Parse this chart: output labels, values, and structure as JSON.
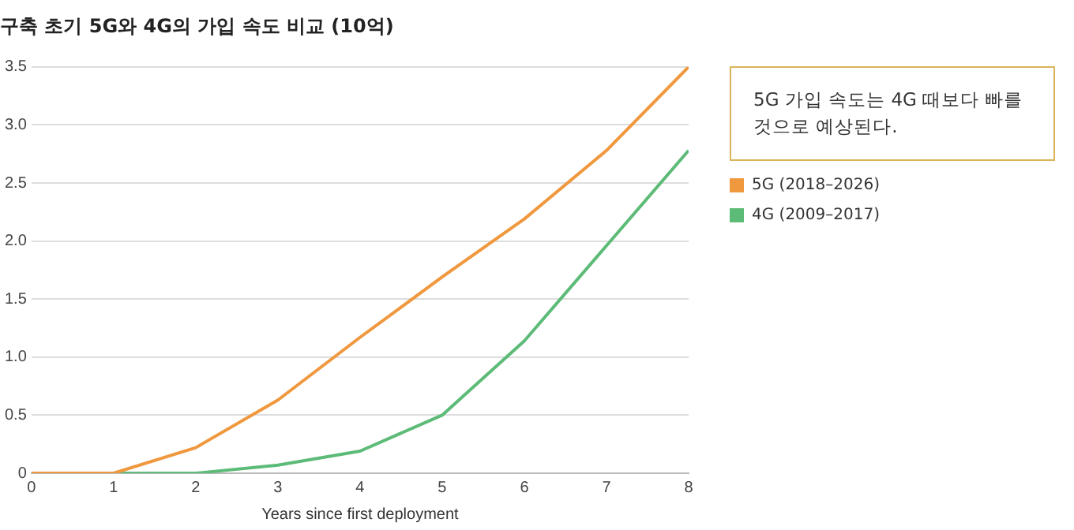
{
  "chart_data": {
    "type": "line",
    "title": "구축 초기 5G와 4G의 가입 속도 비교 (10억)",
    "xlabel": "Years since first deployment",
    "x": [
      0,
      1,
      2,
      3,
      4,
      5,
      6,
      7,
      8
    ],
    "series": [
      {
        "name": "5G (2018–2026)",
        "color": "#f0983e",
        "values": [
          0,
          0,
          0.22,
          0.63,
          1.17,
          1.69,
          2.19,
          2.78,
          3.5
        ]
      },
      {
        "name": "4G (2009–2017)",
        "color": "#5dbb78",
        "values": [
          0,
          0,
          0,
          0.07,
          0.19,
          0.5,
          1.14,
          1.96,
          2.78
        ]
      }
    ],
    "xlim": [
      0,
      8
    ],
    "xticks": [
      0,
      1,
      2,
      3,
      4,
      5,
      6,
      7,
      8
    ],
    "ylim": [
      0,
      3.5
    ],
    "yticks": [
      0,
      {
        "value": 0.5,
        "label": "0.5"
      },
      {
        "value": 1,
        "label": "1.0"
      },
      {
        "value": 1.5,
        "label": "1.5"
      },
      {
        "value": 2,
        "label": "2.0"
      },
      {
        "value": 2.5,
        "label": "2.5"
      },
      {
        "value": 3,
        "label": "3.0"
      },
      {
        "value": 3.5,
        "label": "3.5"
      }
    ],
    "grid": "y",
    "legend": "right",
    "marker": "none",
    "line_style": "solid",
    "annotations": [
      "5G 가입 속도는 4G 때보다 빠를 것으로 예상된다."
    ]
  }
}
